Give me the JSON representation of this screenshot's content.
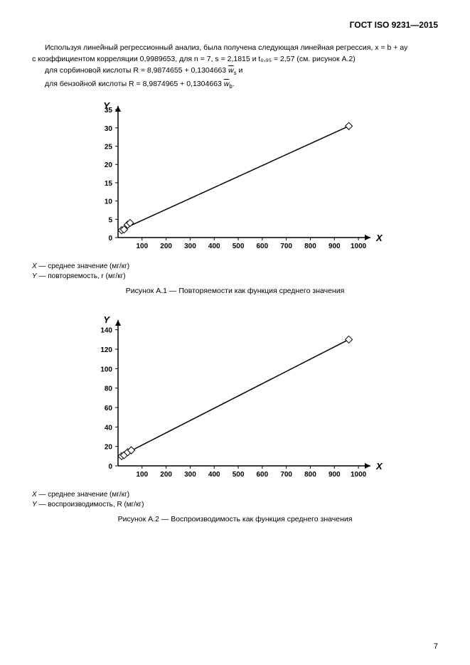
{
  "header": "ГОСТ ISO 9231—2015",
  "intro_lines": [
    "Используя линейный регрессионный анализ, была получена следующая линейная регрессия, x = b + ay",
    "с коэффициентом корреляции 0,9989653, для n = 7, s = 2,1815 и t₀,₉₅ = 2,57 (см. рисунок А.2)"
  ],
  "eq1_prefix": "для сорбиновой кислоты R = 8,9874655 + 0,1304663 ",
  "eq1_var": "w",
  "eq1_sub": "s",
  "eq1_suffix": "  и",
  "eq2_prefix": "для бензойной кислоты R = 8,9874965 + 0,1304663 ",
  "eq2_var": "w",
  "eq2_sub": "b",
  "eq2_suffix": ".",
  "chart1": {
    "type": "line",
    "x_axis_letter": "X",
    "y_axis_letter": "Y",
    "x_ticks": [
      100,
      200,
      300,
      400,
      500,
      600,
      700,
      800,
      900,
      1000
    ],
    "y_ticks": [
      0,
      5,
      10,
      15,
      20,
      25,
      30,
      35
    ],
    "series_points": [
      {
        "x": 15,
        "y": 2.0
      },
      {
        "x": 25,
        "y": 2.2
      },
      {
        "x": 40,
        "y": 3.5
      },
      {
        "x": 50,
        "y": 4.0
      }
    ],
    "line_start": {
      "x": 10,
      "y": 2.0
    },
    "line_end": {
      "x": 960,
      "y": 30.5
    },
    "marker_shape": "diamond",
    "marker_size": 5,
    "line_color": "#000000",
    "line_width": 1.5,
    "axis_color": "#000000",
    "font_size": 11,
    "xlim": [
      0,
      1050
    ],
    "ylim": [
      0,
      36
    ]
  },
  "legend1_X_key": "X",
  "legend1_X_text": " — среднее значение (мг/кг)",
  "legend1_Y_key": "Y",
  "legend1_Y_text": " — повторяемость, r (мг/кг)",
  "caption1": "Рисунок А.1 — Повторяемости как функция среднего значения",
  "chart2": {
    "type": "line",
    "x_axis_letter": "X",
    "y_axis_letter": "Y",
    "x_ticks": [
      100,
      200,
      300,
      400,
      500,
      600,
      700,
      800,
      900,
      1000
    ],
    "y_ticks": [
      0,
      20,
      40,
      60,
      80,
      100,
      120,
      140
    ],
    "series_points": [
      {
        "x": 15,
        "y": 10
      },
      {
        "x": 25,
        "y": 11
      },
      {
        "x": 40,
        "y": 14
      },
      {
        "x": 55,
        "y": 16
      }
    ],
    "line_start": {
      "x": 10,
      "y": 10
    },
    "line_end": {
      "x": 960,
      "y": 130
    },
    "marker_shape": "diamond",
    "marker_size": 5,
    "line_color": "#000000",
    "line_width": 1.5,
    "axis_color": "#000000",
    "font_size": 11,
    "xlim": [
      0,
      1050
    ],
    "ylim": [
      0,
      150
    ]
  },
  "legend2_X_key": "X",
  "legend2_X_text": " — среднее значение (мг/кг)",
  "legend2_Y_key": "Y",
  "legend2_Y_text": " — воспроизводимость, R (мг/кг)",
  "caption2": "Рисунок А.2 — Воспроизводимость как функция среднего значения",
  "page_number": "7"
}
